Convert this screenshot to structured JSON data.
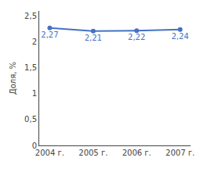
{
  "chart_data": {
    "type": "line",
    "ylabel": "Доля, %",
    "categories": [
      "2004 г.",
      "2005 г.",
      "2006 г.",
      "2007 г."
    ],
    "values": [
      2.27,
      2.21,
      2.22,
      2.24
    ],
    "value_labels": [
      "2,27",
      "2,21",
      "2,22",
      "2,24"
    ],
    "data_labels": true,
    "color": "#4472C4",
    "marker": "circle",
    "ylim": [
      0,
      2.6
    ],
    "yticks": [
      0,
      {
        "value": 0.5,
        "label": "0,5"
      },
      1,
      {
        "value": 1.5,
        "label": "1,5"
      },
      2,
      {
        "value": 2.5,
        "label": "2,5"
      }
    ],
    "grid": false
  }
}
